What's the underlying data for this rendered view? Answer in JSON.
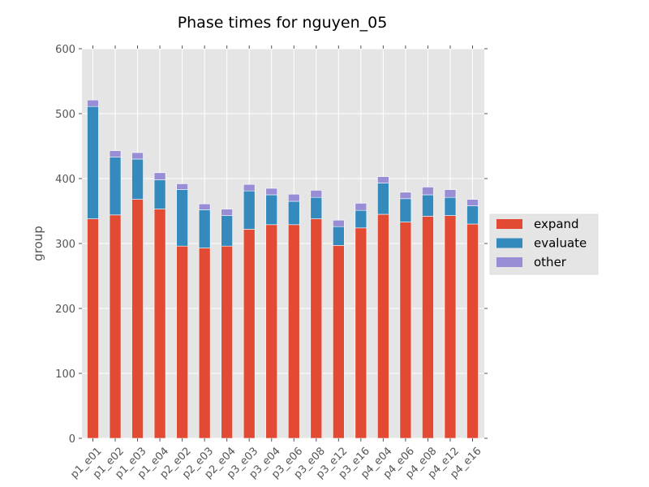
{
  "chart_data": {
    "type": "bar",
    "stacked": true,
    "title": "Phase times for nguyen_05",
    "xlabel": "",
    "ylabel": "group",
    "ylim": [
      0,
      600
    ],
    "yticks": [
      0,
      100,
      200,
      300,
      400,
      500,
      600
    ],
    "grid": true,
    "legend_placement": "right",
    "categories": [
      "p1_e01",
      "p1_e02",
      "p1_e03",
      "p1_e04",
      "p2_e02",
      "p2_e03",
      "p2_e04",
      "p3_e03",
      "p3_e04",
      "p3_e06",
      "p3_e08",
      "p3_e12",
      "p3_e16",
      "p4_e04",
      "p4_e06",
      "p4_e08",
      "p4_e12",
      "p4_e16"
    ],
    "series": [
      {
        "name": "expand",
        "color": "#e24a33",
        "values": [
          338,
          344,
          368,
          353,
          296,
          293,
          296,
          322,
          329,
          329,
          338,
          297,
          324,
          345,
          333,
          342,
          343,
          330
        ]
      },
      {
        "name": "evaluate",
        "color": "#348abd",
        "values": [
          173,
          89,
          62,
          45,
          87,
          59,
          47,
          59,
          46,
          36,
          33,
          29,
          27,
          48,
          36,
          33,
          28,
          28
        ]
      },
      {
        "name": "other",
        "color": "#988ed5",
        "values": [
          10,
          10,
          10,
          11,
          9,
          9,
          10,
          10,
          10,
          11,
          11,
          10,
          11,
          10,
          10,
          12,
          12,
          10
        ]
      }
    ]
  }
}
